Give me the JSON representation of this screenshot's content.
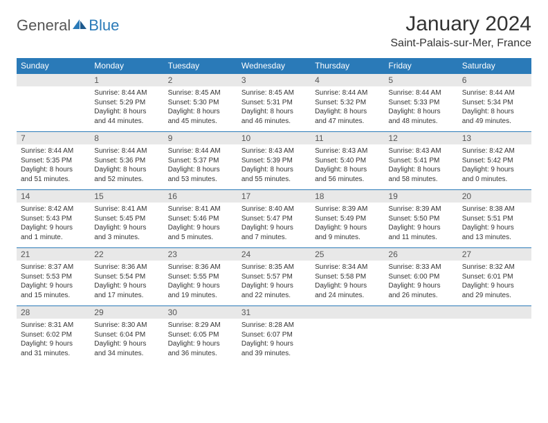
{
  "logo": {
    "part1": "General",
    "part2": "Blue"
  },
  "title": "January 2024",
  "location": "Saint-Palais-sur-Mer, France",
  "colors": {
    "header_bg": "#2a7ab8",
    "header_text": "#ffffff",
    "daynum_bg": "#e8e8e8",
    "daynum_text": "#555555",
    "body_text": "#333333",
    "row_divider": "#2a7ab8",
    "logo_gray": "#555555",
    "logo_blue": "#2a7ab8",
    "page_bg": "#ffffff"
  },
  "typography": {
    "title_fontsize": 30,
    "location_fontsize": 16,
    "dayheader_fontsize": 12,
    "daynum_fontsize": 12,
    "detail_fontsize": 10,
    "logo_fontsize": 22
  },
  "day_headers": [
    "Sunday",
    "Monday",
    "Tuesday",
    "Wednesday",
    "Thursday",
    "Friday",
    "Saturday"
  ],
  "weeks": [
    [
      {
        "num": "",
        "sunrise": "",
        "sunset": "",
        "daylight": ""
      },
      {
        "num": "1",
        "sunrise": "Sunrise: 8:44 AM",
        "sunset": "Sunset: 5:29 PM",
        "daylight": "Daylight: 8 hours and 44 minutes."
      },
      {
        "num": "2",
        "sunrise": "Sunrise: 8:45 AM",
        "sunset": "Sunset: 5:30 PM",
        "daylight": "Daylight: 8 hours and 45 minutes."
      },
      {
        "num": "3",
        "sunrise": "Sunrise: 8:45 AM",
        "sunset": "Sunset: 5:31 PM",
        "daylight": "Daylight: 8 hours and 46 minutes."
      },
      {
        "num": "4",
        "sunrise": "Sunrise: 8:44 AM",
        "sunset": "Sunset: 5:32 PM",
        "daylight": "Daylight: 8 hours and 47 minutes."
      },
      {
        "num": "5",
        "sunrise": "Sunrise: 8:44 AM",
        "sunset": "Sunset: 5:33 PM",
        "daylight": "Daylight: 8 hours and 48 minutes."
      },
      {
        "num": "6",
        "sunrise": "Sunrise: 8:44 AM",
        "sunset": "Sunset: 5:34 PM",
        "daylight": "Daylight: 8 hours and 49 minutes."
      }
    ],
    [
      {
        "num": "7",
        "sunrise": "Sunrise: 8:44 AM",
        "sunset": "Sunset: 5:35 PM",
        "daylight": "Daylight: 8 hours and 51 minutes."
      },
      {
        "num": "8",
        "sunrise": "Sunrise: 8:44 AM",
        "sunset": "Sunset: 5:36 PM",
        "daylight": "Daylight: 8 hours and 52 minutes."
      },
      {
        "num": "9",
        "sunrise": "Sunrise: 8:44 AM",
        "sunset": "Sunset: 5:37 PM",
        "daylight": "Daylight: 8 hours and 53 minutes."
      },
      {
        "num": "10",
        "sunrise": "Sunrise: 8:43 AM",
        "sunset": "Sunset: 5:39 PM",
        "daylight": "Daylight: 8 hours and 55 minutes."
      },
      {
        "num": "11",
        "sunrise": "Sunrise: 8:43 AM",
        "sunset": "Sunset: 5:40 PM",
        "daylight": "Daylight: 8 hours and 56 minutes."
      },
      {
        "num": "12",
        "sunrise": "Sunrise: 8:43 AM",
        "sunset": "Sunset: 5:41 PM",
        "daylight": "Daylight: 8 hours and 58 minutes."
      },
      {
        "num": "13",
        "sunrise": "Sunrise: 8:42 AM",
        "sunset": "Sunset: 5:42 PM",
        "daylight": "Daylight: 9 hours and 0 minutes."
      }
    ],
    [
      {
        "num": "14",
        "sunrise": "Sunrise: 8:42 AM",
        "sunset": "Sunset: 5:43 PM",
        "daylight": "Daylight: 9 hours and 1 minute."
      },
      {
        "num": "15",
        "sunrise": "Sunrise: 8:41 AM",
        "sunset": "Sunset: 5:45 PM",
        "daylight": "Daylight: 9 hours and 3 minutes."
      },
      {
        "num": "16",
        "sunrise": "Sunrise: 8:41 AM",
        "sunset": "Sunset: 5:46 PM",
        "daylight": "Daylight: 9 hours and 5 minutes."
      },
      {
        "num": "17",
        "sunrise": "Sunrise: 8:40 AM",
        "sunset": "Sunset: 5:47 PM",
        "daylight": "Daylight: 9 hours and 7 minutes."
      },
      {
        "num": "18",
        "sunrise": "Sunrise: 8:39 AM",
        "sunset": "Sunset: 5:49 PM",
        "daylight": "Daylight: 9 hours and 9 minutes."
      },
      {
        "num": "19",
        "sunrise": "Sunrise: 8:39 AM",
        "sunset": "Sunset: 5:50 PM",
        "daylight": "Daylight: 9 hours and 11 minutes."
      },
      {
        "num": "20",
        "sunrise": "Sunrise: 8:38 AM",
        "sunset": "Sunset: 5:51 PM",
        "daylight": "Daylight: 9 hours and 13 minutes."
      }
    ],
    [
      {
        "num": "21",
        "sunrise": "Sunrise: 8:37 AM",
        "sunset": "Sunset: 5:53 PM",
        "daylight": "Daylight: 9 hours and 15 minutes."
      },
      {
        "num": "22",
        "sunrise": "Sunrise: 8:36 AM",
        "sunset": "Sunset: 5:54 PM",
        "daylight": "Daylight: 9 hours and 17 minutes."
      },
      {
        "num": "23",
        "sunrise": "Sunrise: 8:36 AM",
        "sunset": "Sunset: 5:55 PM",
        "daylight": "Daylight: 9 hours and 19 minutes."
      },
      {
        "num": "24",
        "sunrise": "Sunrise: 8:35 AM",
        "sunset": "Sunset: 5:57 PM",
        "daylight": "Daylight: 9 hours and 22 minutes."
      },
      {
        "num": "25",
        "sunrise": "Sunrise: 8:34 AM",
        "sunset": "Sunset: 5:58 PM",
        "daylight": "Daylight: 9 hours and 24 minutes."
      },
      {
        "num": "26",
        "sunrise": "Sunrise: 8:33 AM",
        "sunset": "Sunset: 6:00 PM",
        "daylight": "Daylight: 9 hours and 26 minutes."
      },
      {
        "num": "27",
        "sunrise": "Sunrise: 8:32 AM",
        "sunset": "Sunset: 6:01 PM",
        "daylight": "Daylight: 9 hours and 29 minutes."
      }
    ],
    [
      {
        "num": "28",
        "sunrise": "Sunrise: 8:31 AM",
        "sunset": "Sunset: 6:02 PM",
        "daylight": "Daylight: 9 hours and 31 minutes."
      },
      {
        "num": "29",
        "sunrise": "Sunrise: 8:30 AM",
        "sunset": "Sunset: 6:04 PM",
        "daylight": "Daylight: 9 hours and 34 minutes."
      },
      {
        "num": "30",
        "sunrise": "Sunrise: 8:29 AM",
        "sunset": "Sunset: 6:05 PM",
        "daylight": "Daylight: 9 hours and 36 minutes."
      },
      {
        "num": "31",
        "sunrise": "Sunrise: 8:28 AM",
        "sunset": "Sunset: 6:07 PM",
        "daylight": "Daylight: 9 hours and 39 minutes."
      },
      {
        "num": "",
        "sunrise": "",
        "sunset": "",
        "daylight": ""
      },
      {
        "num": "",
        "sunrise": "",
        "sunset": "",
        "daylight": ""
      },
      {
        "num": "",
        "sunrise": "",
        "sunset": "",
        "daylight": ""
      }
    ]
  ]
}
